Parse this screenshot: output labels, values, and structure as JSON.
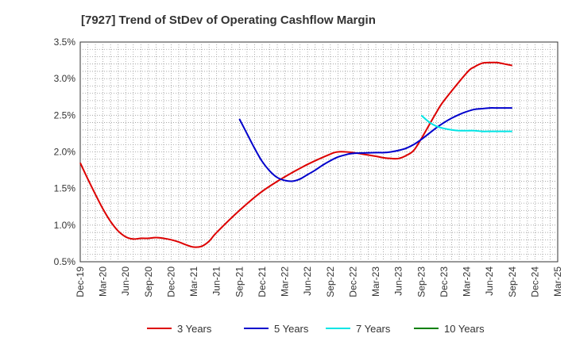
{
  "chart_data": {
    "type": "line",
    "title": "[7927]  Trend of StDev of Operating Cashflow Margin",
    "xlabel": "",
    "ylabel": "",
    "x_ticks": [
      "Dec-19",
      "Mar-20",
      "Jun-20",
      "Sep-20",
      "Dec-20",
      "Mar-21",
      "Jun-21",
      "Sep-21",
      "Dec-21",
      "Mar-22",
      "Jun-22",
      "Sep-22",
      "Dec-22",
      "Mar-23",
      "Jun-23",
      "Sep-23",
      "Dec-23",
      "Mar-24",
      "Jun-24",
      "Sep-24",
      "Dec-24",
      "Mar-25"
    ],
    "y_ticks": [
      "0.5%",
      "1.0%",
      "1.5%",
      "2.0%",
      "2.5%",
      "3.0%",
      "3.5%"
    ],
    "ylim": [
      0.5,
      3.5
    ],
    "grid": true,
    "legend_position": "bottom",
    "series": [
      {
        "name": "3 Years",
        "color": "#dd0000",
        "x": [
          "Dec-19",
          "Jan-20",
          "Feb-20",
          "Mar-20",
          "Apr-20",
          "May-20",
          "Jun-20",
          "Jul-20",
          "Aug-20",
          "Sep-20",
          "Oct-20",
          "Nov-20",
          "Dec-20",
          "Jan-21",
          "Feb-21",
          "Mar-21",
          "Apr-21",
          "May-21",
          "Jun-21",
          "Sep-21",
          "Dec-21",
          "Mar-22",
          "Jun-22",
          "Sep-22",
          "Oct-22",
          "Nov-22",
          "Dec-22",
          "Mar-23",
          "Apr-23",
          "May-23",
          "Jun-23",
          "Jul-23",
          "Aug-23",
          "Sep-23",
          "Oct-23",
          "Nov-23",
          "Dec-23",
          "Mar-24",
          "Apr-24",
          "May-24",
          "Jun-24",
          "Jul-24",
          "Aug-24",
          "Sep-24"
        ],
        "values": [
          1.85,
          1.63,
          1.42,
          1.22,
          1.05,
          0.92,
          0.84,
          0.81,
          0.82,
          0.82,
          0.83,
          0.82,
          0.8,
          0.77,
          0.73,
          0.7,
          0.71,
          0.78,
          0.9,
          1.2,
          1.46,
          1.66,
          1.83,
          1.97,
          2.0,
          2.0,
          1.99,
          1.94,
          1.92,
          1.91,
          1.91,
          1.95,
          2.02,
          2.18,
          2.36,
          2.54,
          2.7,
          3.08,
          3.16,
          3.21,
          3.22,
          3.22,
          3.2,
          3.18
        ]
      },
      {
        "name": "5 Years",
        "color": "#0000cc",
        "x": [
          "Sep-21",
          "Oct-21",
          "Nov-21",
          "Dec-21",
          "Jan-22",
          "Feb-22",
          "Mar-22",
          "Apr-22",
          "May-22",
          "Jun-22",
          "Jul-22",
          "Aug-22",
          "Sep-22",
          "Oct-22",
          "Nov-22",
          "Dec-22",
          "Mar-23",
          "Apr-23",
          "May-23",
          "Jun-23",
          "Jul-23",
          "Aug-23",
          "Sep-23",
          "Oct-23",
          "Nov-23",
          "Dec-23",
          "Jan-24",
          "Feb-24",
          "Mar-24",
          "Apr-24",
          "May-24",
          "Jun-24",
          "Jul-24",
          "Aug-24",
          "Sep-24"
        ],
        "values": [
          2.45,
          2.25,
          2.05,
          1.87,
          1.74,
          1.65,
          1.61,
          1.6,
          1.63,
          1.69,
          1.75,
          1.82,
          1.88,
          1.93,
          1.96,
          1.98,
          1.99,
          1.99,
          2.0,
          2.02,
          2.05,
          2.1,
          2.17,
          2.25,
          2.33,
          2.4,
          2.46,
          2.51,
          2.55,
          2.58,
          2.59,
          2.6,
          2.6,
          2.6,
          2.6
        ]
      },
      {
        "name": "7 Years",
        "color": "#00e5e5",
        "x": [
          "Sep-23",
          "Oct-23",
          "Nov-23",
          "Dec-23",
          "Jan-24",
          "Feb-24",
          "Mar-24",
          "Apr-24",
          "May-24",
          "Jun-24",
          "Jul-24",
          "Aug-24",
          "Sep-24"
        ],
        "values": [
          2.5,
          2.41,
          2.35,
          2.32,
          2.3,
          2.29,
          2.29,
          2.29,
          2.28,
          2.28,
          2.28,
          2.28,
          2.28
        ]
      },
      {
        "name": "10 Years",
        "color": "#008000",
        "x": [],
        "values": []
      }
    ]
  }
}
